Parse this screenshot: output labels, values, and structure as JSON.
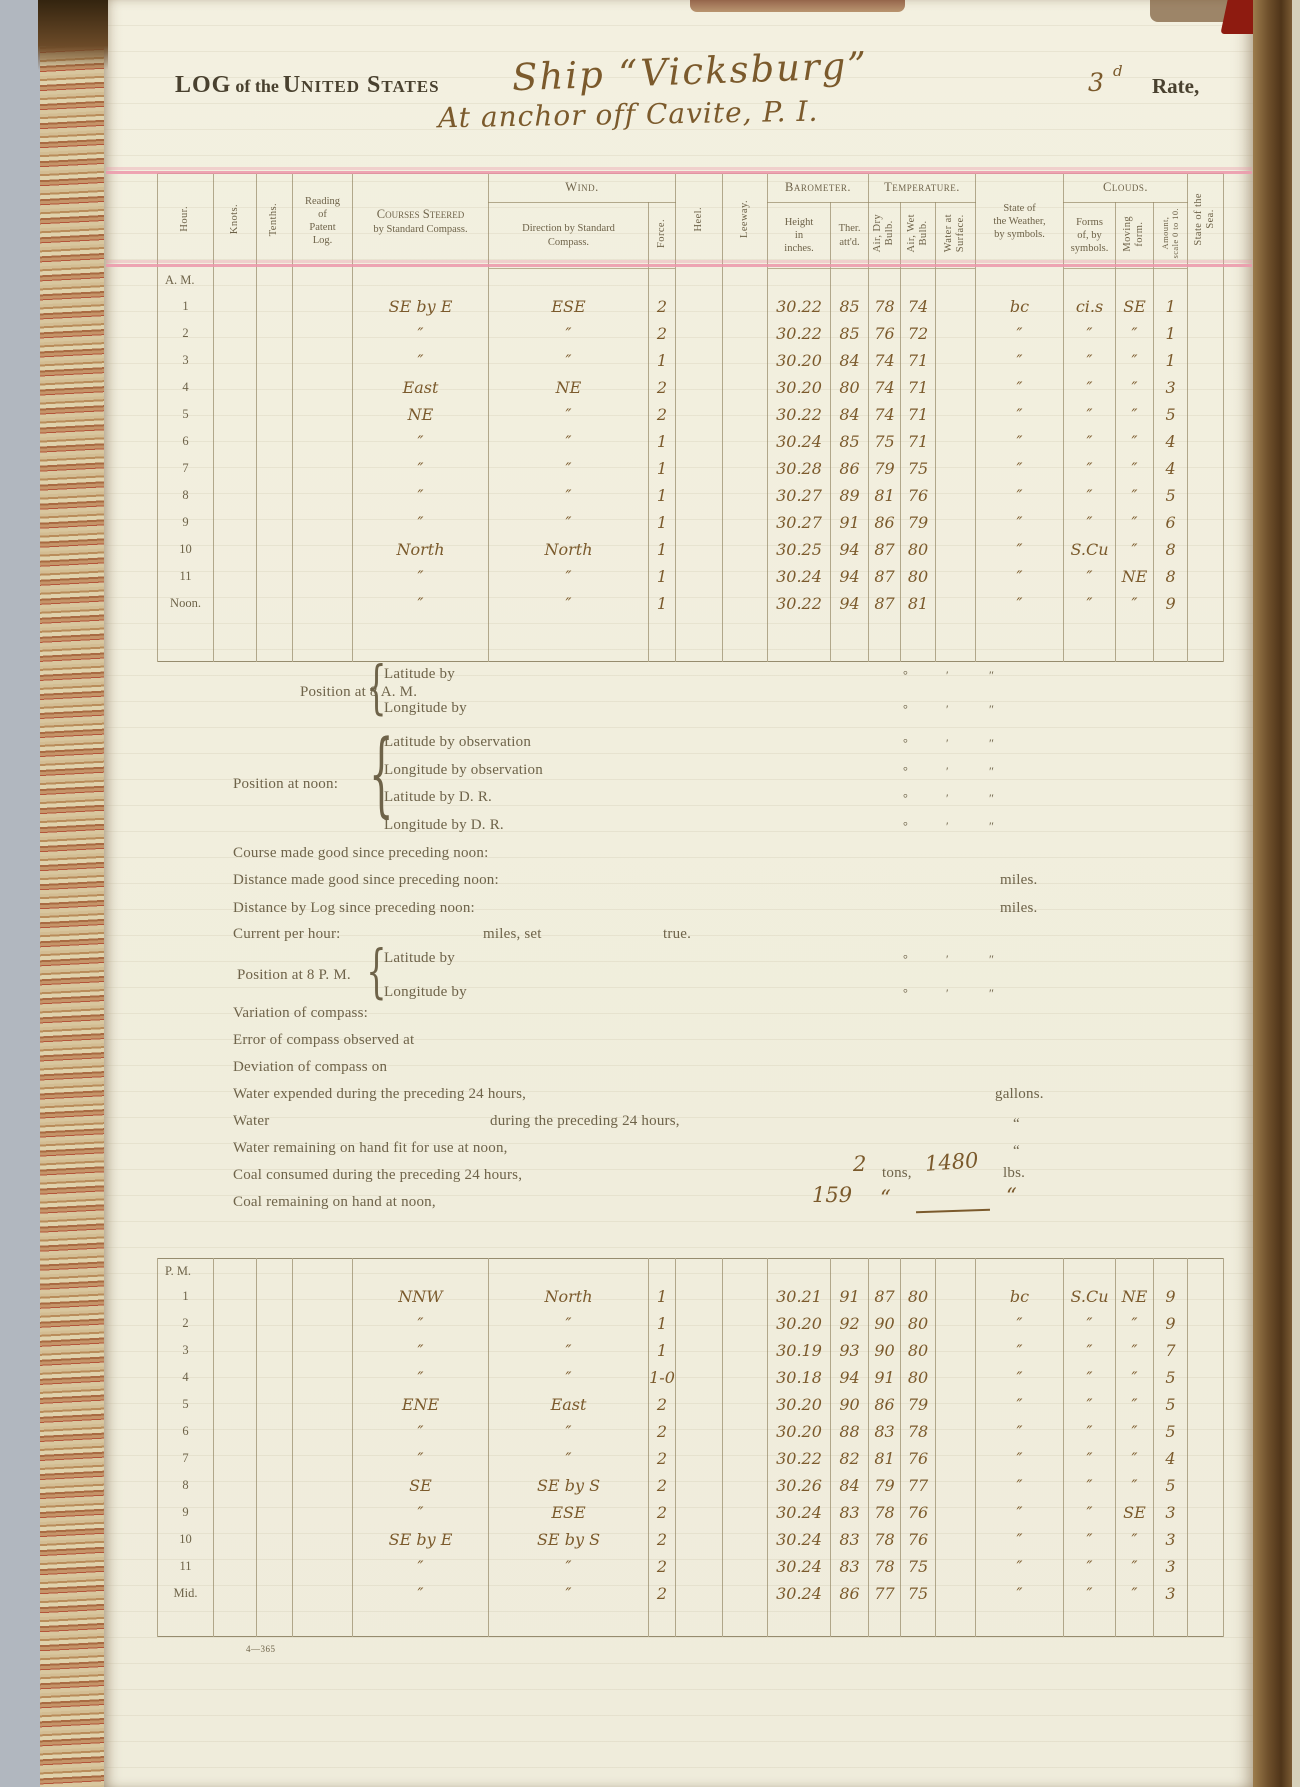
{
  "page": {
    "title_log": "LOG",
    "title_of": "of the",
    "title_us": "United States",
    "ship_name": "Ship “Vicksburg”",
    "rate_value": "3",
    "rate_sup": "d",
    "rate_label": "Rate,",
    "location_line": "At anchor off Cavite, P. I.",
    "footer_code": "4—365"
  },
  "symbols": {
    "deg": "°",
    "min": "′",
    "sec": "″",
    "brace": "{"
  },
  "colors": {
    "page": "#f1eedd",
    "print_ink": "#6e6349",
    "hand_ink": "#7b5a2c",
    "pink_rule": "#ec96aa",
    "table_line": "#968967"
  },
  "table_headers": {
    "hour": "Hour.",
    "knots": "Knots.",
    "tenths": "Tenths.",
    "patent": "Reading\nof\nPatent\nLog.",
    "courses_sc": "Courses Steered",
    "courses_sub": "by Standard Compass.",
    "wind_group": "Wind.",
    "wind_dir": "Direction by Standard\nCompass.",
    "force": "Force.",
    "heel": "Heel.",
    "leeway": "Leeway.",
    "barometer_group": "Barometer.",
    "height": "Height\nin\ninches.",
    "ther": "Ther.\natt'd.",
    "temperature_group": "Temperature.",
    "air_dry": "Air, Dry\nBulb.",
    "air_wet": "Air, Wet\nBulb.",
    "water_surface": "Water at\nSurface.",
    "weather": "State of\nthe Weather,\nby symbols.",
    "clouds_group": "Clouds.",
    "forms": "Forms\nof, by\nsymbols.",
    "moving": "Moving\nform.",
    "amount": "Amount,\nscale 0 to 10.",
    "sea": "State of the\nSea."
  },
  "row_fields": [
    "hour",
    "knots",
    "tenths",
    "patent",
    "course",
    "wind",
    "force",
    "heel",
    "leeway",
    "bar",
    "ther",
    "dry",
    "wet",
    "water",
    "weather",
    "forms",
    "moving",
    "amount",
    "sea"
  ],
  "am_table": {
    "section_label": "A. M.",
    "rows": [
      {
        "hour": "A. M."
      },
      {
        "hour": "1",
        "course": "SE by E",
        "wind": "ESE",
        "force": "2",
        "bar": "30.22",
        "ther": "85",
        "dry": "78",
        "wet": "74",
        "weather": "bc",
        "forms": "ci.s",
        "moving": "SE",
        "amount": "1"
      },
      {
        "hour": "2",
        "course": "″",
        "wind": "″",
        "force": "2",
        "bar": "30.22",
        "ther": "85",
        "dry": "76",
        "wet": "72",
        "weather": "″",
        "forms": "″",
        "moving": "″",
        "amount": "1"
      },
      {
        "hour": "3",
        "course": "″",
        "wind": "″",
        "force": "1",
        "bar": "30.20",
        "ther": "84",
        "dry": "74",
        "wet": "71",
        "weather": "″",
        "forms": "″",
        "moving": "″",
        "amount": "1"
      },
      {
        "hour": "4",
        "course": "East",
        "wind": "NE",
        "force": "2",
        "bar": "30.20",
        "ther": "80",
        "dry": "74",
        "wet": "71",
        "weather": "″",
        "forms": "″",
        "moving": "″",
        "amount": "3"
      },
      {
        "hour": "5",
        "course": "NE",
        "wind": "″",
        "force": "2",
        "bar": "30.22",
        "ther": "84",
        "dry": "74",
        "wet": "71",
        "weather": "″",
        "forms": "″",
        "moving": "″",
        "amount": "5"
      },
      {
        "hour": "6",
        "course": "″",
        "wind": "″",
        "force": "1",
        "bar": "30.24",
        "ther": "85",
        "dry": "75",
        "wet": "71",
        "weather": "″",
        "forms": "″",
        "moving": "″",
        "amount": "4"
      },
      {
        "hour": "7",
        "course": "″",
        "wind": "″",
        "force": "1",
        "bar": "30.28",
        "ther": "86",
        "dry": "79",
        "wet": "75",
        "weather": "″",
        "forms": "″",
        "moving": "″",
        "amount": "4"
      },
      {
        "hour": "8",
        "course": "″",
        "wind": "″",
        "force": "1",
        "bar": "30.27",
        "ther": "89",
        "dry": "81",
        "wet": "76",
        "weather": "″",
        "forms": "″",
        "moving": "″",
        "amount": "5"
      },
      {
        "hour": "9",
        "course": "″",
        "wind": "″",
        "force": "1",
        "bar": "30.27",
        "ther": "91",
        "dry": "86",
        "wet": "79",
        "weather": "″",
        "forms": "″",
        "moving": "″",
        "amount": "6"
      },
      {
        "hour": "10",
        "course": "North",
        "wind": "North",
        "force": "1",
        "bar": "30.25",
        "ther": "94",
        "dry": "87",
        "wet": "80",
        "weather": "″",
        "forms": "S.Cu",
        "moving": "″",
        "amount": "8"
      },
      {
        "hour": "11",
        "course": "″",
        "wind": "″",
        "force": "1",
        "bar": "30.24",
        "ther": "94",
        "dry": "87",
        "wet": "80",
        "weather": "″",
        "forms": "″",
        "moving": "NE",
        "amount": "8"
      },
      {
        "hour": "Noon.",
        "course": "″",
        "wind": "″",
        "force": "1",
        "bar": "30.22",
        "ther": "94",
        "dry": "87",
        "wet": "81",
        "weather": "″",
        "forms": "″",
        "moving": "″",
        "amount": "9"
      },
      {
        "hour": ""
      }
    ]
  },
  "pm_table": {
    "section_label": "P. M.",
    "rows": [
      {
        "hour": "P. M."
      },
      {
        "hour": "1",
        "course": "NNW",
        "wind": "North",
        "force": "1",
        "bar": "30.21",
        "ther": "91",
        "dry": "87",
        "wet": "80",
        "weather": "bc",
        "forms": "S.Cu",
        "moving": "NE",
        "amount": "9"
      },
      {
        "hour": "2",
        "course": "″",
        "wind": "″",
        "force": "1",
        "bar": "30.20",
        "ther": "92",
        "dry": "90",
        "wet": "80",
        "weather": "″",
        "forms": "″",
        "moving": "″",
        "amount": "9"
      },
      {
        "hour": "3",
        "course": "″",
        "wind": "″",
        "force": "1",
        "bar": "30.19",
        "ther": "93",
        "dry": "90",
        "wet": "80",
        "weather": "″",
        "forms": "″",
        "moving": "″",
        "amount": "7"
      },
      {
        "hour": "4",
        "course": "″",
        "wind": "″",
        "force": "1-0",
        "bar": "30.18",
        "ther": "94",
        "dry": "91",
        "wet": "80",
        "weather": "″",
        "forms": "″",
        "moving": "″",
        "amount": "5"
      },
      {
        "hour": "5",
        "course": "ENE",
        "wind": "East",
        "force": "2",
        "bar": "30.20",
        "ther": "90",
        "dry": "86",
        "wet": "79",
        "weather": "″",
        "forms": "″",
        "moving": "″",
        "amount": "5"
      },
      {
        "hour": "6",
        "course": "″",
        "wind": "″",
        "force": "2",
        "bar": "30.20",
        "ther": "88",
        "dry": "83",
        "wet": "78",
        "weather": "″",
        "forms": "″",
        "moving": "″",
        "amount": "5"
      },
      {
        "hour": "7",
        "course": "″",
        "wind": "″",
        "force": "2",
        "bar": "30.22",
        "ther": "82",
        "dry": "81",
        "wet": "76",
        "weather": "″",
        "forms": "″",
        "moving": "″",
        "amount": "4"
      },
      {
        "hour": "8",
        "course": "SE",
        "wind": "SE by S",
        "force": "2",
        "bar": "30.26",
        "ther": "84",
        "dry": "79",
        "wet": "77",
        "weather": "″",
        "forms": "″",
        "moving": "″",
        "amount": "5"
      },
      {
        "hour": "9",
        "course": "″",
        "wind": "ESE",
        "force": "2",
        "bar": "30.24",
        "ther": "83",
        "dry": "78",
        "wet": "76",
        "weather": "″",
        "forms": "″",
        "moving": "SE",
        "amount": "3"
      },
      {
        "hour": "10",
        "course": "SE by E",
        "wind": "SE by S",
        "force": "2",
        "bar": "30.24",
        "ther": "83",
        "dry": "78",
        "wet": "76",
        "weather": "″",
        "forms": "″",
        "moving": "″",
        "amount": "3"
      },
      {
        "hour": "11",
        "course": "″",
        "wind": "″",
        "force": "2",
        "bar": "30.24",
        "ther": "83",
        "dry": "78",
        "wet": "75",
        "weather": "″",
        "forms": "″",
        "moving": "″",
        "amount": "3"
      },
      {
        "hour": "Mid.",
        "course": "″",
        "wind": "″",
        "force": "2",
        "bar": "30.24",
        "ther": "86",
        "dry": "77",
        "wet": "75",
        "weather": "″",
        "forms": "″",
        "moving": "″",
        "amount": "3"
      },
      {
        "hour": ""
      }
    ]
  },
  "positions": {
    "p8am": {
      "label": "Position at 8 A. M.",
      "lat": "Latitude by",
      "lon": "Longitude by"
    },
    "pnoon": {
      "label": "Position at noon:",
      "lat_obs": "Latitude by observation",
      "lon_obs": "Longitude by observation",
      "lat_dr": "Latitude by D. R.",
      "lon_dr": "Longitude by D. R."
    },
    "p8pm": {
      "label": "Position at 8 P. M.",
      "lat": "Latitude by",
      "lon": "Longitude by"
    }
  },
  "mid_lines": {
    "course_made": "Course made good since preceding noon:",
    "distance_made": "Distance made good since preceding noon:",
    "distance_log": "Distance by Log since preceding noon:",
    "current": "Current per hour:",
    "current_miles": "miles, set",
    "current_true": "true.",
    "variation": "Variation of compass:",
    "error": "Error of compass observed at",
    "deviation": "Deviation of compass on",
    "water_expended": "Water expended during the preceding 24 hours,",
    "water_word": "Water",
    "water_during": "during the preceding 24 hours,",
    "water_remaining": "Water remaining on hand fit for use at noon,",
    "coal_consumed": "Coal consumed during the preceding 24 hours,",
    "coal_remaining": "Coal remaining on hand at noon,",
    "miles_label": "miles.",
    "gallons_label": "gallons.",
    "ditto_quote": "“",
    "tons_label": "tons,",
    "lbs_label": "lbs."
  },
  "hand_values": {
    "coal_tons": "2",
    "coal_lbs": "1480",
    "coal_remaining_tons": "159",
    "q1": "“",
    "q2": "“"
  }
}
